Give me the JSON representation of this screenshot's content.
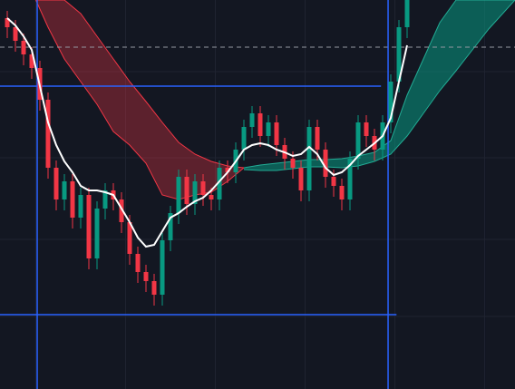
{
  "chart_data": {
    "type": "candlestick",
    "background": "#131722",
    "up_color": "#089981",
    "down_color": "#f23645",
    "grid": true,
    "grid_color": "#1f2330",
    "xlim": [
      -0.889,
      62.222
    ],
    "ylim": [
      0,
      429
    ],
    "xticks": [
      3.5,
      14.5,
      25.5,
      36.5,
      47.5,
      58.5
    ],
    "yticks": [
      80,
      165,
      255,
      350
    ],
    "candles": {
      "open": [
        409,
        399,
        384,
        369,
        354,
        319,
        244,
        209,
        229,
        189,
        214,
        144,
        199,
        219,
        209,
        184,
        149,
        129,
        119,
        104,
        164,
        194,
        234,
        204,
        229,
        214,
        209,
        244,
        239,
        264,
        289,
        304,
        279,
        294,
        269,
        254,
        244,
        219,
        289,
        264,
        234,
        224,
        209,
        254,
        294,
        279,
        264,
        294,
        339,
        399
      ],
      "high": [
        417,
        407,
        392,
        377,
        362,
        327,
        252,
        237,
        237,
        222,
        222,
        207,
        227,
        227,
        217,
        192,
        157,
        137,
        127,
        172,
        202,
        242,
        242,
        237,
        237,
        222,
        252,
        252,
        272,
        297,
        312,
        312,
        302,
        302,
        277,
        262,
        252,
        297,
        297,
        272,
        242,
        232,
        262,
        302,
        302,
        287,
        302,
        347,
        407,
        437
      ],
      "low": [
        387,
        372,
        357,
        342,
        307,
        232,
        197,
        197,
        177,
        177,
        132,
        132,
        187,
        197,
        172,
        137,
        117,
        107,
        92,
        92,
        152,
        182,
        192,
        192,
        202,
        197,
        197,
        227,
        227,
        252,
        277,
        267,
        267,
        257,
        242,
        232,
        207,
        207,
        252,
        222,
        212,
        197,
        197,
        242,
        267,
        252,
        252,
        282,
        327,
        387
      ],
      "close": [
        399,
        384,
        369,
        354,
        319,
        244,
        209,
        229,
        189,
        214,
        144,
        199,
        219,
        209,
        184,
        149,
        129,
        119,
        104,
        164,
        194,
        234,
        204,
        229,
        214,
        209,
        244,
        239,
        264,
        289,
        304,
        279,
        294,
        269,
        254,
        244,
        219,
        289,
        264,
        234,
        224,
        209,
        254,
        294,
        279,
        264,
        294,
        339,
        399,
        429
      ]
    },
    "moving_average": {
      "color": "#ffffff",
      "values": [
        409,
        401,
        389,
        374,
        334,
        294,
        269,
        251,
        239,
        224,
        219,
        219,
        217,
        214,
        199,
        184,
        167,
        157,
        159,
        174,
        189,
        194,
        201,
        207,
        211,
        219,
        229,
        239,
        251,
        264,
        269,
        271,
        269,
        264,
        261,
        257,
        259,
        267,
        259,
        244,
        236,
        239,
        247,
        257,
        264,
        271,
        279,
        299,
        339,
        379
      ]
    },
    "clouds": [
      {
        "fill": "rgba(242,54,69,0.33)",
        "edge": "#f23645",
        "x": [
          3.5,
          5,
          7,
          9,
          11,
          13,
          15,
          17,
          19,
          21,
          23,
          25,
          27,
          29
        ],
        "upper": [
          429,
          429,
          429,
          414,
          389,
          364,
          339,
          317,
          294,
          272,
          259,
          251,
          246,
          244
        ],
        "lower": [
          429,
          399,
          364,
          339,
          314,
          284,
          269,
          249,
          214,
          209,
          214,
          217,
          229,
          244
        ]
      },
      {
        "fill": "rgba(8,153,129,0.55)",
        "edge": "#22ab94",
        "x": [
          29,
          31,
          33,
          35,
          37,
          39,
          41,
          43,
          45,
          47,
          49,
          51,
          53,
          55,
          57,
          59,
          62.222
        ],
        "upper": [
          244,
          247,
          249,
          251,
          253,
          253,
          254,
          257,
          261,
          274,
          324,
          364,
          404,
          429,
          429,
          429,
          429
        ],
        "lower": [
          242,
          241,
          241,
          243,
          245,
          245,
          244,
          246,
          251,
          259,
          279,
          304,
          329,
          351,
          374,
          397,
          429
        ]
      }
    ],
    "horizontal_lines": [
      {
        "value": 334,
        "x_end": 45.8,
        "color": "#2962ff",
        "dashed": false
      },
      {
        "value": 82,
        "x_end": 47.7,
        "color": "#2962ff",
        "dashed": false
      },
      {
        "value": 377,
        "x_end": 62.222,
        "color": "#9598a1",
        "dashed": true
      }
    ],
    "vertical_lines": [
      {
        "value": 3.67,
        "color": "#2962ff"
      },
      {
        "value": 46.67,
        "color": "#2962ff"
      }
    ]
  }
}
